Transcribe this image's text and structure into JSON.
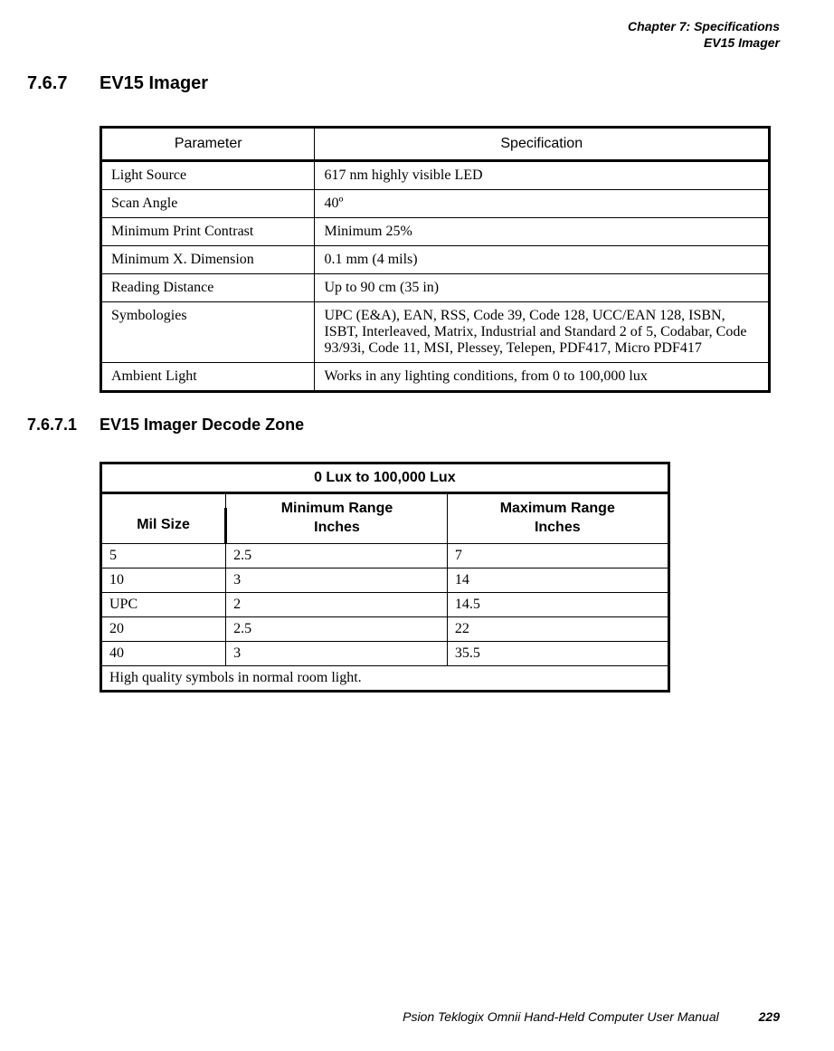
{
  "header": {
    "chapter": "Chapter 7:  Specifications",
    "subtitle": "EV15 Imager"
  },
  "section": {
    "number": "7.6.7",
    "title": "EV15 Imager"
  },
  "spec_table": {
    "headers": [
      "Parameter",
      "Specification"
    ],
    "rows": [
      [
        "Light Source",
        "617 nm highly visible LED"
      ],
      [
        "Scan Angle",
        "40º"
      ],
      [
        "Minimum Print Contrast",
        "Minimum 25%"
      ],
      [
        "Minimum X. Dimension",
        "0.1 mm (4 mils)"
      ],
      [
        "Reading Distance",
        "Up to 90 cm (35 in)"
      ],
      [
        "Symbologies",
        "UPC (E&A), EAN, RSS, Code 39, Code 128, UCC/EAN 128, ISBN, ISBT, Interleaved, Matrix, Industrial and Standard 2 of 5, Codabar, Code 93/93i, Code 11, MSI, Plessey, Telepen, PDF417, Micro PDF417"
      ],
      [
        "Ambient Light",
        "Works in any lighting conditions, from 0 to 100,000 lux"
      ]
    ]
  },
  "subsection": {
    "number": "7.6.7.1",
    "title": "EV15 Imager Decode Zone"
  },
  "decode_table": {
    "title": "0 Lux to 100,000 Lux",
    "mil_label": "Mil Size",
    "min_label_1": "Minimum Range",
    "min_label_2": "Inches",
    "max_label_1": "Maximum Range",
    "max_label_2": "Inches",
    "rows": [
      [
        "5",
        "2.5",
        "7"
      ],
      [
        "10",
        "3",
        "14"
      ],
      [
        "UPC",
        "2",
        "14.5"
      ],
      [
        "20",
        "2.5",
        "22"
      ],
      [
        "40",
        "3",
        "35.5"
      ]
    ],
    "footer": "High quality symbols in normal room light."
  },
  "footer": {
    "manual": "Psion Teklogix Omnii Hand-Held Computer User Manual",
    "page": "229"
  }
}
